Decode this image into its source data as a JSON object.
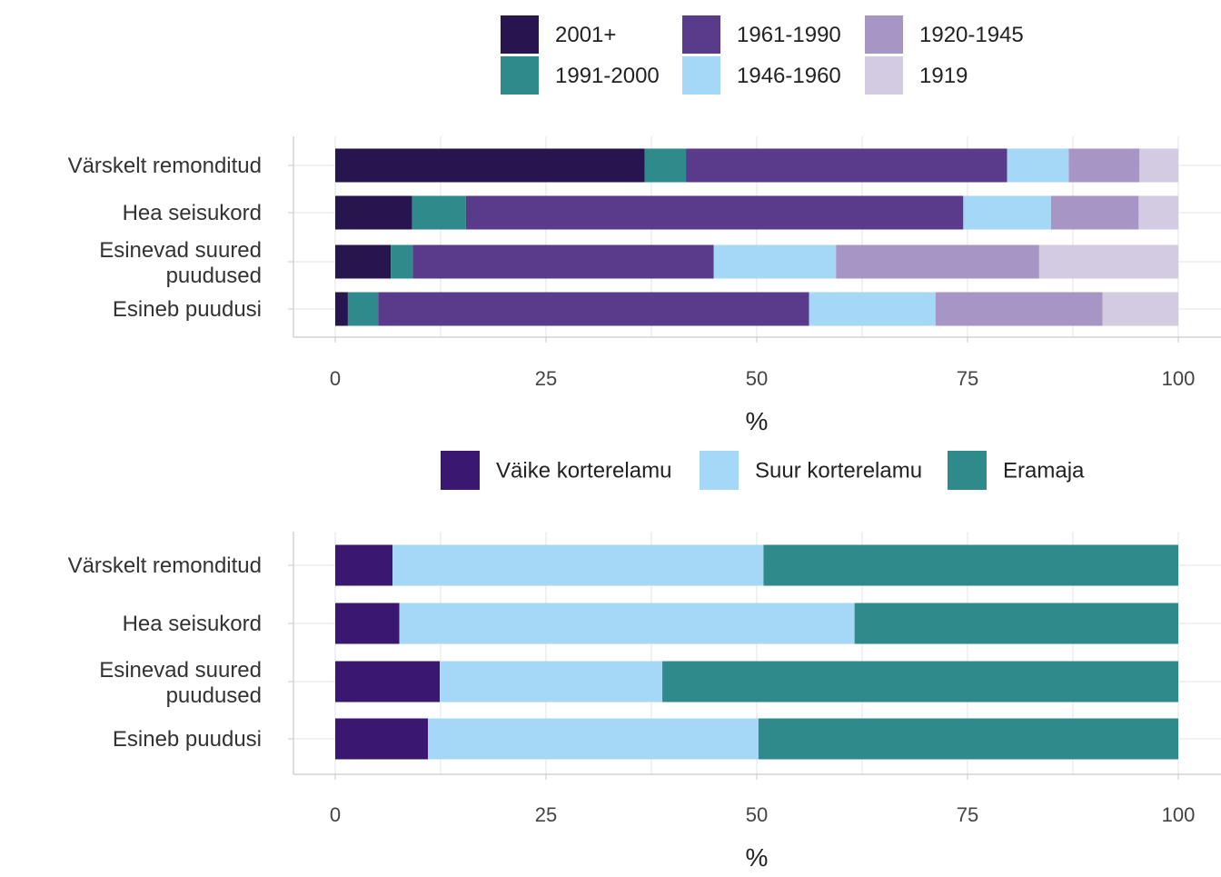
{
  "colors": {
    "2001+": "#271550",
    "1991-2000": "#2e8a8b",
    "1961-1990": "#5a3b8b",
    "1946-1960": "#a5d8f6",
    "1920-1945": "#a796c5",
    "1919": "#d3cbe1",
    "Väike korterelamu": "#3a1770",
    "Suur korterelamu": "#a5d8f6",
    "Eramaja": "#2e8a8b"
  },
  "chart_data": [
    {
      "type": "bar",
      "orientation": "horizontal",
      "stacked": true,
      "categories": [
        "Värskelt remonditud",
        "Hea seisukord",
        "Esinevad suured puudused",
        "Esineb puudusi"
      ],
      "legend": {
        "placement": "top",
        "entries": [
          "2001+",
          "1991-2000",
          "1961-1990",
          "1946-1960",
          "1920-1945",
          "1919"
        ]
      },
      "series": [
        {
          "name": "2001+",
          "values": [
            36.7,
            9.1,
            6.6,
            1.5
          ]
        },
        {
          "name": "1991-2000",
          "values": [
            4.9,
            6.4,
            2.6,
            3.6
          ]
        },
        {
          "name": "1961-1990",
          "values": [
            38.1,
            59.0,
            35.7,
            51.1
          ]
        },
        {
          "name": "1946-1960",
          "values": [
            7.3,
            10.4,
            14.5,
            15.0
          ]
        },
        {
          "name": "1920-1945",
          "values": [
            8.4,
            10.4,
            24.1,
            19.8
          ]
        },
        {
          "name": "1919",
          "values": [
            4.6,
            4.7,
            16.5,
            9.0
          ]
        }
      ],
      "xlabel": "%",
      "xlim": [
        0,
        100
      ],
      "xticks": [
        "0",
        "25",
        "50",
        "75",
        "100"
      ],
      "grid": true
    },
    {
      "type": "bar",
      "orientation": "horizontal",
      "stacked": true,
      "categories": [
        "Värskelt remonditud",
        "Hea seisukord",
        "Esinevad suured puudused",
        "Esineb puudusi"
      ],
      "legend": {
        "placement": "top",
        "entries": [
          "Väike korterelamu",
          "Suur korterelamu",
          "Eramaja"
        ]
      },
      "series": [
        {
          "name": "Väike korterelamu",
          "values": [
            6.8,
            7.6,
            12.4,
            11.0
          ]
        },
        {
          "name": "Suur korterelamu",
          "values": [
            44.0,
            54.0,
            26.4,
            39.2
          ]
        },
        {
          "name": "Eramaja",
          "values": [
            49.2,
            38.4,
            61.2,
            49.8
          ]
        }
      ],
      "xlabel": "%",
      "xlim": [
        0,
        100
      ],
      "xticks": [
        "0",
        "25",
        "50",
        "75",
        "100"
      ],
      "grid": true
    }
  ]
}
